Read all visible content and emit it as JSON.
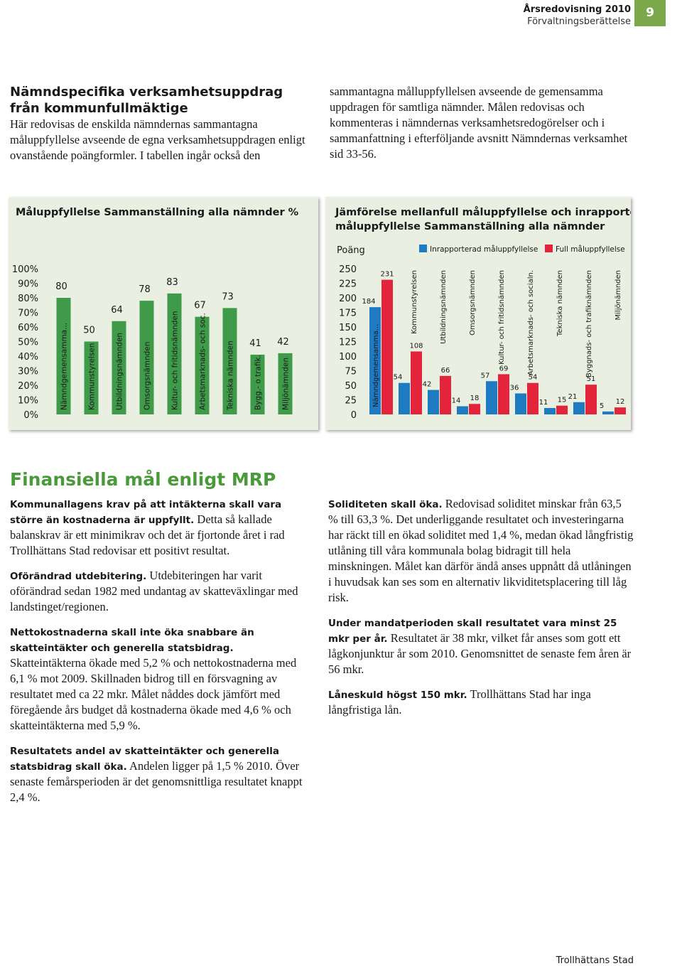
{
  "header": {
    "title": "Årsredovisning 2010",
    "subtitle": "Förvaltningsberättelse",
    "page": "9"
  },
  "intro": {
    "heading": "Nämndspecifika verksamhetsuppdrag från kommunfullmäktige",
    "text": "Här redovisas de enskilda nämndernas sammantagna måluppfyllelse avseende de egna verksamhetsuppdragen enligt ovanstående poängformler. I tabellen ingår också den sammantagna målluppfyllelsen avseende de gemensamma uppdragen för samtliga nämnder. Målen redovisas och kommenteras i nämndernas verksamhetsredogörelser och i sammanfattning i efterföljande avsnitt Nämndernas verksamhet sid 33-56."
  },
  "chart_data": [
    {
      "type": "bar",
      "title": "Måluppfyllelse Sammanställning alla nämnder %",
      "categories": [
        "Nämndgemensamma...",
        "Kommunstyrelsen",
        "Utbildningsnämnden",
        "Omsorgsnämnden",
        "Kultur- och fritidsnämnden",
        "Arbetsmarknads- och soc.",
        "Tekniska nämnden",
        "Bygg.- o trafik.",
        "Miljönämnden"
      ],
      "values": [
        80,
        50,
        64,
        78,
        83,
        67,
        73,
        41,
        42
      ],
      "color": "#3f9a4a",
      "ylim": [
        0,
        100
      ],
      "yticks": [
        {
          "value": 0,
          "label": "0%"
        },
        {
          "value": 10,
          "label": "10%"
        },
        {
          "value": 20,
          "label": "20%"
        },
        {
          "value": 30,
          "label": "30%"
        },
        {
          "value": 40,
          "label": "40%"
        },
        {
          "value": 50,
          "label": "50%"
        },
        {
          "value": 60,
          "label": "60%"
        },
        {
          "value": 70,
          "label": "70%"
        },
        {
          "value": 80,
          "label": "80%"
        },
        {
          "value": 90,
          "label": "90%"
        },
        {
          "value": 100,
          "label": "100%"
        }
      ]
    },
    {
      "type": "bar",
      "title": [
        "Jämförelse mellanfull måluppfyllelse och inrapporterad",
        "måluppfyllelse Sammanställning alla nämnder"
      ],
      "y_label": "Poäng",
      "categories": [
        "Nämndgemensamma...",
        "Kommunstyrelsen",
        "Utbildningsnämnden",
        "Omsorgsnämnden",
        "Kultur- och fritidsnämnden",
        "Arbetsmarknads- och socialn.",
        "Tekniska nämnden",
        "Byggnads- och trafiknämnden",
        "Miljönämnden"
      ],
      "series": [
        {
          "name": "Inrapporterad måluppfyllelse",
          "color": "#1f7bc1",
          "values": [
            184,
            54,
            42,
            14,
            57,
            36,
            11,
            21,
            5
          ]
        },
        {
          "name": "Full måluppfyllelse",
          "color": "#e3243b",
          "values": [
            231,
            108,
            66,
            18,
            69,
            54,
            15,
            51,
            12
          ]
        }
      ],
      "ylim": [
        0,
        250
      ],
      "yticks": [
        0,
        25,
        50,
        75,
        100,
        125,
        150,
        175,
        200,
        225,
        250
      ]
    }
  ],
  "finance": {
    "heading": "Finansiella mål enligt MRP",
    "left": [
      {
        "lead": "Kommunallagens krav på att intäkterna skall vara större än kostnaderna är uppfyllt.",
        "text": "Detta så kallade balanskrav är ett minimikrav och det är fjortonde året i rad Trollhättans Stad redovisar ett positivt resultat."
      },
      {
        "lead": "Oförändrad utdebitering.",
        "text": "Utdebiteringen har varit oförändrad sedan 1982 med undantag av skatteväxlingar med landstinget/regionen."
      },
      {
        "lead": "Nettokostnaderna skall inte öka snabbare än skatteintäkter och generella statsbidrag.",
        "text": "Skatteintäkterna ökade med 5,2 % och nettokostnaderna med 6,1 % mot 2009. Skillnaden bidrog till en försvagning av resultatet med ca 22 mkr. Målet nåddes dock jämfört med föregående års budget då kostnaderna ökade med 4,6 % och skatteintäkterna med 5,9 %."
      },
      {
        "lead": "Resultatets andel av skatteintäkter och generella statsbidrag skall öka.",
        "text": "Andelen ligger på 1,5 % 2010. Över senaste femårsperioden är det genomsnittliga resultatet knappt 2,4 %."
      }
    ],
    "right": [
      {
        "lead": "Soliditeten skall öka.",
        "text": "Redovisad soliditet minskar från 63,5 % till 63,3 %. Det underliggande resultatet och investeringarna har räckt till en ökad soliditet med 1,4 %, medan ökad långfristig utlåning till våra kommunala bolag bidragit till hela minskningen. Målet kan därför ändå anses uppnått då utlåningen i huvudsak kan ses som en alternativ likviditetsplacering till låg risk."
      },
      {
        "lead": "Under mandatperioden skall resultatet vara minst 25 mkr per år.",
        "text": "Resultatet är 38 mkr, vilket får anses som gott ett lågkonjunktur år som 2010. Genomsnittet de senaste fem åren är 56 mkr."
      },
      {
        "lead": "Låneskuld högst 150 mkr.",
        "text": "Trollhättans Stad har inga långfristiga lån."
      }
    ]
  },
  "footer": "Trollhättans Stad"
}
